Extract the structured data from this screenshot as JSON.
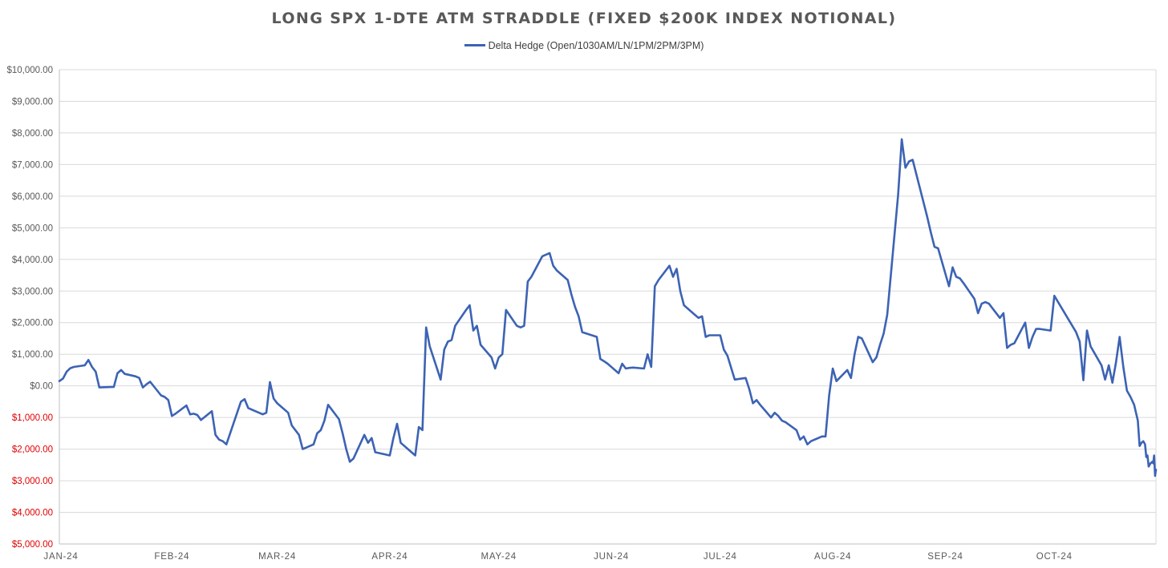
{
  "chart_data": {
    "type": "line",
    "title": "LONG SPX 1-DTE ATM STRADDLE (FIXED $200K INDEX NOTIONAL)",
    "xlabel": "",
    "ylabel": "",
    "ylim": [
      -5000,
      10000
    ],
    "y_ticks": [
      10000,
      9000,
      8000,
      7000,
      6000,
      5000,
      4000,
      3000,
      2000,
      1000,
      0,
      -1000,
      -2000,
      -3000,
      -4000,
      -5000
    ],
    "y_tick_labels": [
      "$10,000.00",
      "$9,000.00",
      "$8,000.00",
      "$7,000.00",
      "$6,000.00",
      "$5,000.00",
      "$4,000.00",
      "$3,000.00",
      "$2,000.00",
      "$1,000.00",
      "$0.00",
      "$1,000.00",
      "$2,000.00",
      "$3,000.00",
      "$4,000.00",
      "$5,000.00"
    ],
    "x_ticks": [
      "2024-01-01",
      "2024-02-01",
      "2024-03-01",
      "2024-04-01",
      "2024-05-01",
      "2024-06-01",
      "2024-07-01",
      "2024-08-01",
      "2024-09-01",
      "2024-10-01"
    ],
    "x_tick_labels": [
      "JAN-24",
      "FEB-24",
      "MAR-24",
      "APR-24",
      "MAY-24",
      "JUN-24",
      "JUL-24",
      "AUG-24",
      "SEP-24",
      "OCT-24"
    ],
    "xlim": [
      "2024-01-01",
      "2024-10-29"
    ],
    "grid": true,
    "legend_position": "top",
    "series": [
      {
        "name": "Delta Hedge (Open/1030AM/LN/1PM/2PM/3PM)",
        "color": "#3c63b4",
        "points": [
          [
            "2024-01-01",
            150
          ],
          [
            "2024-01-02",
            230
          ],
          [
            "2024-01-03",
            450
          ],
          [
            "2024-01-04",
            560
          ],
          [
            "2024-01-05",
            600
          ],
          [
            "2024-01-08",
            650
          ],
          [
            "2024-01-09",
            820
          ],
          [
            "2024-01-10",
            600
          ],
          [
            "2024-01-11",
            450
          ],
          [
            "2024-01-12",
            -50
          ],
          [
            "2024-01-16",
            -30
          ],
          [
            "2024-01-17",
            400
          ],
          [
            "2024-01-18",
            500
          ],
          [
            "2024-01-19",
            380
          ],
          [
            "2024-01-22",
            300
          ],
          [
            "2024-01-23",
            250
          ],
          [
            "2024-01-24",
            -50
          ],
          [
            "2024-01-25",
            50
          ],
          [
            "2024-01-26",
            130
          ],
          [
            "2024-01-29",
            -300
          ],
          [
            "2024-01-30",
            -350
          ],
          [
            "2024-01-31",
            -450
          ],
          [
            "2024-02-01",
            -950
          ],
          [
            "2024-02-02",
            -880
          ],
          [
            "2024-02-05",
            -620
          ],
          [
            "2024-02-06",
            -900
          ],
          [
            "2024-02-07",
            -880
          ],
          [
            "2024-02-08",
            -920
          ],
          [
            "2024-02-09",
            -1080
          ],
          [
            "2024-02-12",
            -800
          ],
          [
            "2024-02-13",
            -1550
          ],
          [
            "2024-02-14",
            -1700
          ],
          [
            "2024-02-15",
            -1750
          ],
          [
            "2024-02-16",
            -1850
          ],
          [
            "2024-02-20",
            -500
          ],
          [
            "2024-02-21",
            -420
          ],
          [
            "2024-02-22",
            -700
          ],
          [
            "2024-02-23",
            -750
          ],
          [
            "2024-02-26",
            -900
          ],
          [
            "2024-02-27",
            -850
          ],
          [
            "2024-02-28",
            120
          ],
          [
            "2024-02-29",
            -400
          ],
          [
            "2024-03-01",
            -550
          ],
          [
            "2024-03-04",
            -850
          ],
          [
            "2024-03-05",
            -1250
          ],
          [
            "2024-03-06",
            -1400
          ],
          [
            "2024-03-07",
            -1550
          ],
          [
            "2024-03-08",
            -2000
          ],
          [
            "2024-03-11",
            -1850
          ],
          [
            "2024-03-12",
            -1500
          ],
          [
            "2024-03-13",
            -1400
          ],
          [
            "2024-03-14",
            -1100
          ],
          [
            "2024-03-15",
            -600
          ],
          [
            "2024-03-18",
            -1050
          ],
          [
            "2024-03-19",
            -1500
          ],
          [
            "2024-03-20",
            -2000
          ],
          [
            "2024-03-21",
            -2400
          ],
          [
            "2024-03-22",
            -2300
          ],
          [
            "2024-03-25",
            -1550
          ],
          [
            "2024-03-26",
            -1800
          ],
          [
            "2024-03-27",
            -1650
          ],
          [
            "2024-03-28",
            -2100
          ],
          [
            "2024-04-01",
            -2200
          ],
          [
            "2024-04-02",
            -1650
          ],
          [
            "2024-04-03",
            -1200
          ],
          [
            "2024-04-04",
            -1800
          ],
          [
            "2024-04-08",
            -2200
          ],
          [
            "2024-04-09",
            -1300
          ],
          [
            "2024-04-10",
            -1400
          ],
          [
            "2024-04-11",
            1850
          ],
          [
            "2024-04-12",
            1250
          ],
          [
            "2024-04-15",
            200
          ],
          [
            "2024-04-16",
            1150
          ],
          [
            "2024-04-17",
            1400
          ],
          [
            "2024-04-18",
            1450
          ],
          [
            "2024-04-19",
            1900
          ],
          [
            "2024-04-22",
            2400
          ],
          [
            "2024-04-23",
            2550
          ],
          [
            "2024-04-24",
            1750
          ],
          [
            "2024-04-25",
            1900
          ],
          [
            "2024-04-26",
            1300
          ],
          [
            "2024-04-29",
            900
          ],
          [
            "2024-04-30",
            550
          ],
          [
            "2024-05-01",
            900
          ],
          [
            "2024-05-02",
            1000
          ],
          [
            "2024-05-03",
            2400
          ],
          [
            "2024-05-06",
            1900
          ],
          [
            "2024-05-07",
            1850
          ],
          [
            "2024-05-08",
            1900
          ],
          [
            "2024-05-09",
            3300
          ],
          [
            "2024-05-10",
            3450
          ],
          [
            "2024-05-13",
            4100
          ],
          [
            "2024-05-14",
            4150
          ],
          [
            "2024-05-15",
            4200
          ],
          [
            "2024-05-16",
            3800
          ],
          [
            "2024-05-17",
            3650
          ],
          [
            "2024-05-20",
            3350
          ],
          [
            "2024-05-21",
            2900
          ],
          [
            "2024-05-22",
            2500
          ],
          [
            "2024-05-23",
            2200
          ],
          [
            "2024-05-24",
            1700
          ],
          [
            "2024-05-28",
            1550
          ],
          [
            "2024-05-29",
            850
          ],
          [
            "2024-05-30",
            780
          ],
          [
            "2024-05-31",
            700
          ],
          [
            "2024-06-03",
            400
          ],
          [
            "2024-06-04",
            700
          ],
          [
            "2024-06-05",
            550
          ],
          [
            "2024-06-06",
            570
          ],
          [
            "2024-06-07",
            580
          ],
          [
            "2024-06-10",
            550
          ],
          [
            "2024-06-11",
            1000
          ],
          [
            "2024-06-12",
            600
          ],
          [
            "2024-06-13",
            3150
          ],
          [
            "2024-06-14",
            3350
          ],
          [
            "2024-06-17",
            3800
          ],
          [
            "2024-06-18",
            3450
          ],
          [
            "2024-06-19",
            3700
          ],
          [
            "2024-06-20",
            3000
          ],
          [
            "2024-06-21",
            2550
          ],
          [
            "2024-06-24",
            2250
          ],
          [
            "2024-06-25",
            2150
          ],
          [
            "2024-06-26",
            2200
          ],
          [
            "2024-06-27",
            1550
          ],
          [
            "2024-06-28",
            1600
          ],
          [
            "2024-07-01",
            1600
          ],
          [
            "2024-07-02",
            1150
          ],
          [
            "2024-07-03",
            950
          ],
          [
            "2024-07-05",
            200
          ],
          [
            "2024-07-08",
            250
          ],
          [
            "2024-07-09",
            -100
          ],
          [
            "2024-07-10",
            -550
          ],
          [
            "2024-07-11",
            -450
          ],
          [
            "2024-07-12",
            -600
          ],
          [
            "2024-07-15",
            -1000
          ],
          [
            "2024-07-16",
            -850
          ],
          [
            "2024-07-17",
            -950
          ],
          [
            "2024-07-18",
            -1100
          ],
          [
            "2024-07-19",
            -1150
          ],
          [
            "2024-07-22",
            -1400
          ],
          [
            "2024-07-23",
            -1700
          ],
          [
            "2024-07-24",
            -1600
          ],
          [
            "2024-07-25",
            -1850
          ],
          [
            "2024-07-26",
            -1750
          ],
          [
            "2024-07-29",
            -1600
          ],
          [
            "2024-07-30",
            -1600
          ],
          [
            "2024-07-31",
            -300
          ],
          [
            "2024-08-01",
            550
          ],
          [
            "2024-08-02",
            150
          ],
          [
            "2024-08-05",
            500
          ],
          [
            "2024-08-06",
            250
          ],
          [
            "2024-08-07",
            1000
          ],
          [
            "2024-08-08",
            1550
          ],
          [
            "2024-08-09",
            1500
          ],
          [
            "2024-08-12",
            750
          ],
          [
            "2024-08-13",
            900
          ],
          [
            "2024-08-14",
            1300
          ],
          [
            "2024-08-15",
            1650
          ],
          [
            "2024-08-16",
            2250
          ],
          [
            "2024-08-19",
            6050
          ],
          [
            "2024-08-20",
            7800
          ],
          [
            "2024-08-21",
            6900
          ],
          [
            "2024-08-22",
            7100
          ],
          [
            "2024-08-23",
            7150
          ],
          [
            "2024-08-26",
            5800
          ],
          [
            "2024-08-27",
            5350
          ],
          [
            "2024-08-28",
            4850
          ],
          [
            "2024-08-29",
            4400
          ],
          [
            "2024-08-30",
            4350
          ],
          [
            "2024-09-02",
            3150
          ],
          [
            "2024-09-03",
            3750
          ],
          [
            "2024-09-04",
            3450
          ],
          [
            "2024-09-05",
            3400
          ],
          [
            "2024-09-06",
            3250
          ],
          [
            "2024-09-09",
            2750
          ],
          [
            "2024-09-10",
            2300
          ],
          [
            "2024-09-11",
            2600
          ],
          [
            "2024-09-12",
            2650
          ],
          [
            "2024-09-13",
            2600
          ],
          [
            "2024-09-16",
            2150
          ],
          [
            "2024-09-17",
            2300
          ],
          [
            "2024-09-18",
            1200
          ],
          [
            "2024-09-19",
            1300
          ],
          [
            "2024-09-20",
            1350
          ],
          [
            "2024-09-23",
            2000
          ],
          [
            "2024-09-24",
            1200
          ],
          [
            "2024-09-25",
            1550
          ],
          [
            "2024-09-26",
            1800
          ],
          [
            "2024-09-27",
            1800
          ],
          [
            "2024-09-30",
            1750
          ],
          [
            "2024-10-01",
            2850
          ],
          [
            "2024-10-07",
            1700
          ],
          [
            "2024-10-08",
            1400
          ],
          [
            "2024-10-09",
            180
          ],
          [
            "2024-10-10",
            1750
          ],
          [
            "2024-10-11",
            1250
          ],
          [
            "2024-10-14",
            650
          ],
          [
            "2024-10-15",
            200
          ],
          [
            "2024-10-16",
            650
          ],
          [
            "2024-10-17",
            100
          ],
          [
            "2024-10-18",
            750
          ],
          [
            "2024-10-19",
            1550
          ],
          [
            "2024-10-20",
            600
          ],
          [
            "2024-10-21",
            -150
          ],
          [
            "2024-10-22",
            -350
          ],
          [
            "2024-10-23",
            -600
          ],
          [
            "2024-10-24",
            -1100
          ],
          [
            "2024-10-24T12:00",
            -1900
          ],
          [
            "2024-10-25",
            -1800
          ],
          [
            "2024-10-25T12:00",
            -1750
          ],
          [
            "2024-10-26",
            -1850
          ],
          [
            "2024-10-26T08:00",
            -2250
          ],
          [
            "2024-10-26T16:00",
            -2200
          ],
          [
            "2024-10-27",
            -2550
          ],
          [
            "2024-10-27T12:00",
            -2450
          ],
          [
            "2024-10-28",
            -2400
          ],
          [
            "2024-10-28T06:00",
            -2450
          ],
          [
            "2024-10-28T12:00",
            -2200
          ],
          [
            "2024-10-28T18:00",
            -2850
          ],
          [
            "2024-10-29",
            -2650
          ]
        ]
      }
    ]
  }
}
